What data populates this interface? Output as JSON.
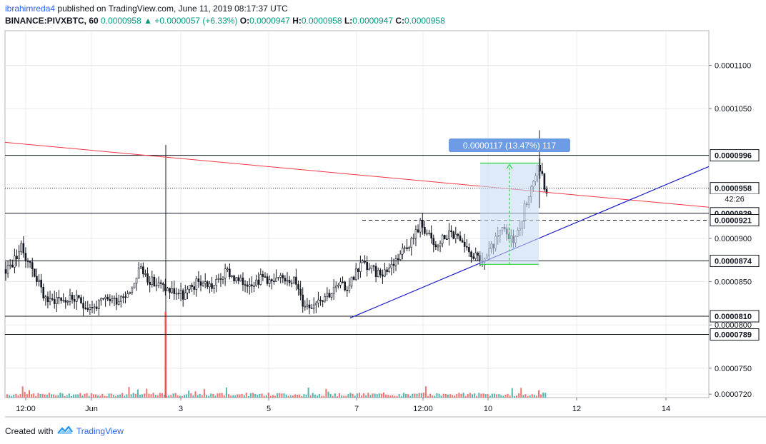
{
  "header": {
    "username": "ibrahimreda4",
    "published": "published on TradingView.com, June 11, 2019 08:17:37 UTC",
    "symbol": "BINANCE:PIVXBTC, 60",
    "last": "0.0000958",
    "change": "+0.0000057 (+6.33%)",
    "o_label": "O:",
    "o": "0.0000947",
    "h_label": "H:",
    "h": "0.0000958",
    "l_label": "L:",
    "l": "0.0000947",
    "c_label": "C:",
    "c": "0.0000958"
  },
  "footer": {
    "created": "Created with",
    "brand": "TradingView"
  },
  "colors": {
    "up": "#26a69a",
    "down": "#ef5350",
    "candle": "#131722",
    "red_line": "#f23645",
    "blue_line": "#1a1ac8",
    "measure_fill": "#c9dcf5",
    "measure_label": "#6e9be6",
    "green": "#2bd33d"
  },
  "chart_data": {
    "type": "candlestick",
    "symbol": "BINANCE:PIVXBTC",
    "interval": "60",
    "y_axis": {
      "ticks": [
        "0.0001100",
        "0.0001050",
        "0.0000900",
        "0.0000850",
        "0.0000800",
        "0.0000750",
        "0.0000720"
      ],
      "tick_values": [
        0.00011,
        0.000105,
        9e-05,
        8.5e-05,
        8e-05,
        7.5e-05,
        7.2e-05
      ],
      "range": [
        7.16e-05,
        0.000114
      ]
    },
    "x_axis": {
      "ticks": [
        "12:00",
        "Jun",
        "3",
        "5",
        "7",
        "12:00",
        "10",
        "12",
        "14"
      ]
    },
    "last_price_label": "0.0000958",
    "countdown": "42:26",
    "price_levels": [
      {
        "label": "0.0000996",
        "value": 9.96e-05,
        "style": "solid"
      },
      {
        "label": "0.0000958",
        "value": 9.58e-05,
        "style": "dotted"
      },
      {
        "label": "0.0000929",
        "value": 9.29e-05,
        "style": "solid"
      },
      {
        "label": "0.0000921",
        "value": 9.21e-05,
        "style": "dashed"
      },
      {
        "label": "0.0000874",
        "value": 8.74e-05,
        "style": "solid"
      },
      {
        "label": "0.0000810",
        "value": 8.1e-05,
        "style": "solid"
      },
      {
        "label": "0.0000789",
        "value": 7.89e-05,
        "style": "solid"
      }
    ],
    "measure_label": "0.0000117 (13.47%) 117",
    "series_shape": [
      [
        0,
        8.64e-05
      ],
      [
        1,
        8.72e-05
      ],
      [
        2,
        8.9e-05
      ],
      [
        3,
        8.75e-05
      ],
      [
        4,
        8.58e-05
      ],
      [
        5,
        8.36e-05
      ],
      [
        6,
        8.26e-05
      ],
      [
        7,
        8.32e-05
      ],
      [
        8,
        8.28e-05
      ],
      [
        9,
        8.31e-05
      ],
      [
        10,
        8.26e-05
      ],
      [
        11,
        8.22e-05
      ],
      [
        12,
        8.2e-05
      ],
      [
        13,
        8.26e-05
      ],
      [
        14,
        8.3e-05
      ],
      [
        15,
        8.29e-05
      ],
      [
        16,
        8.36e-05
      ],
      [
        17,
        8.42e-05
      ],
      [
        18,
        8.66e-05
      ],
      [
        19,
        8.56e-05
      ],
      [
        20,
        8.48e-05
      ],
      [
        21,
        8.45e-05
      ],
      [
        22,
        8.4e-05
      ],
      [
        23,
        8.38e-05
      ],
      [
        24,
        8.33e-05
      ],
      [
        25,
        8.42e-05
      ],
      [
        26,
        8.5e-05
      ],
      [
        27,
        8.48e-05
      ],
      [
        28,
        8.44e-05
      ],
      [
        29,
        8.55e-05
      ],
      [
        30,
        8.62e-05
      ],
      [
        31,
        8.52e-05
      ],
      [
        32,
        8.48e-05
      ],
      [
        33,
        8.5e-05
      ],
      [
        34,
        8.52e-05
      ],
      [
        35,
        8.56e-05
      ],
      [
        36,
        8.48e-05
      ],
      [
        37,
        8.52e-05
      ],
      [
        38,
        8.55e-05
      ],
      [
        39,
        8.52e-05
      ],
      [
        40,
        8.26e-05
      ],
      [
        41,
        8.22e-05
      ],
      [
        42,
        8.3e-05
      ],
      [
        43,
        8.34e-05
      ],
      [
        44,
        8.38e-05
      ],
      [
        45,
        8.46e-05
      ],
      [
        46,
        8.42e-05
      ],
      [
        47,
        8.58e-05
      ],
      [
        48,
        8.72e-05
      ],
      [
        49,
        8.66e-05
      ],
      [
        50,
        8.6e-05
      ],
      [
        51,
        8.62e-05
      ],
      [
        52,
        8.68e-05
      ],
      [
        53,
        8.8e-05
      ],
      [
        54,
        8.92e-05
      ],
      [
        55,
        9e-05
      ],
      [
        56,
        9.18e-05
      ],
      [
        57,
        9.04e-05
      ],
      [
        58,
        8.88e-05
      ],
      [
        59,
        9e-05
      ],
      [
        60,
        9.06e-05
      ],
      [
        61,
        9e-05
      ],
      [
        62,
        8.85e-05
      ],
      [
        63,
        8.82e-05
      ],
      [
        64,
        8.72e-05
      ],
      [
        65,
        8.8e-05
      ],
      [
        66,
        8.95e-05
      ],
      [
        67,
        9.1e-05
      ],
      [
        68,
        8.98e-05
      ],
      [
        69,
        9.03e-05
      ],
      [
        70,
        9.35e-05
      ],
      [
        71,
        9.62e-05
      ],
      [
        72,
        9.85e-05
      ],
      [
        73,
        9.5e-05
      ]
    ],
    "markings": {
      "red_line": {
        "start_value": 0.0001011,
        "slope": "down"
      },
      "blue_line": {
        "start_value": 8.08e-05,
        "slope": "up"
      }
    }
  }
}
